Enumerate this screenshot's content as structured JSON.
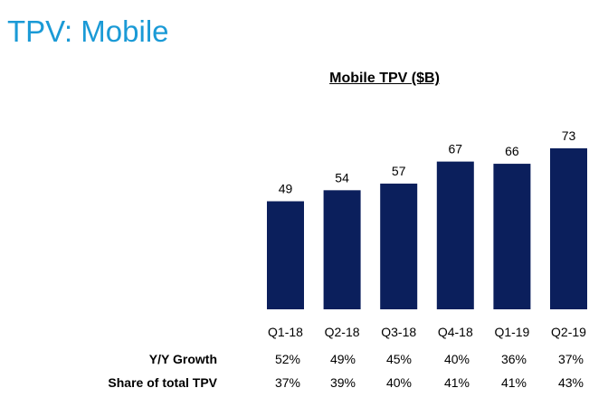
{
  "page_title": "TPV: Mobile",
  "chart_data": {
    "type": "bar",
    "title": "Mobile TPV ($B)",
    "categories": [
      "Q1-18",
      "Q2-18",
      "Q3-18",
      "Q4-18",
      "Q1-19",
      "Q2-19"
    ],
    "values": [
      49,
      54,
      57,
      67,
      66,
      73
    ],
    "ylim": [
      0,
      73
    ],
    "bar_color": "#0b1f5c",
    "grid": false,
    "legend": "none"
  },
  "table": {
    "rows": [
      {
        "label": "Y/Y Growth",
        "values": [
          "52%",
          "49%",
          "45%",
          "40%",
          "36%",
          "37%"
        ]
      },
      {
        "label": "Share of total TPV",
        "values": [
          "37%",
          "39%",
          "40%",
          "41%",
          "41%",
          "43%"
        ]
      }
    ]
  }
}
